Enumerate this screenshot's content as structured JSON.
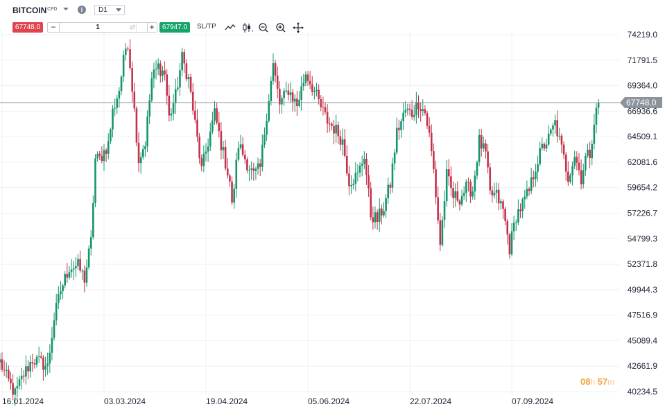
{
  "header": {
    "symbol": "BITCOIN",
    "symbol_tag": "CFD",
    "timeframe": "D1",
    "sell_price": "67748.0",
    "quantity": "1",
    "buy_price": "67947.0",
    "sltp_label": "SL/TP",
    "icons": [
      "chevron-down-icon",
      "info-icon",
      "swap-icon",
      "line-chart-icon",
      "candle-icon",
      "zoom-out-icon",
      "zoom-in-icon",
      "move-icon"
    ]
  },
  "timer": {
    "hours": "08",
    "hours_unit": "h",
    "minutes": "57",
    "minutes_unit": "m"
  },
  "colors": {
    "up": "#13946a",
    "down": "#c53148",
    "current_price_tag": "#8b949e",
    "sell": "#e0434e",
    "buy": "#18a36b",
    "timer": "#f2a33a"
  },
  "chart_data": {
    "type": "candlestick",
    "interval": "D1",
    "x_tick_labels": [
      "16.01.2024",
      "03.03.2024",
      "19.04.2024",
      "05.06.2024",
      "22.07.2024",
      "07.09.2024"
    ],
    "y_tick_labels": [
      "74219.0",
      "71791.5",
      "69364.0",
      "66936.6",
      "64509.1",
      "62081.6",
      "59654.2",
      "57226.7",
      "54799.3",
      "52371.8",
      "49944.3",
      "47516.9",
      "45089.4",
      "42661.9",
      "40234.5"
    ],
    "current_price": 67748.0,
    "current_price_label": "67748.0",
    "ylim": [
      40234.5,
      74219.0
    ],
    "grid": true,
    "series": [
      {
        "date": "2024-01-15",
        "close": 43100
      },
      {
        "date": "2024-01-18",
        "close": 41600
      },
      {
        "date": "2024-01-22",
        "close": 40000
      },
      {
        "date": "2024-01-26",
        "close": 41900
      },
      {
        "date": "2024-01-30",
        "close": 43300
      },
      {
        "date": "2024-02-03",
        "close": 43000
      },
      {
        "date": "2024-02-06",
        "close": 42600
      },
      {
        "date": "2024-02-09",
        "close": 47200
      },
      {
        "date": "2024-02-12",
        "close": 49900
      },
      {
        "date": "2024-02-16",
        "close": 52100
      },
      {
        "date": "2024-02-20",
        "close": 52200
      },
      {
        "date": "2024-02-23",
        "close": 51000
      },
      {
        "date": "2024-02-26",
        "close": 54500
      },
      {
        "date": "2024-02-28",
        "close": 62400
      },
      {
        "date": "2024-03-01",
        "close": 62400
      },
      {
        "date": "2024-03-03",
        "close": 63100
      },
      {
        "date": "2024-03-05",
        "close": 63800
      },
      {
        "date": "2024-03-07",
        "close": 66900
      },
      {
        "date": "2024-03-10",
        "close": 69000
      },
      {
        "date": "2024-03-13",
        "close": 73000
      },
      {
        "date": "2024-03-14",
        "close": 73500
      },
      {
        "date": "2024-03-16",
        "close": 69300
      },
      {
        "date": "2024-03-19",
        "close": 62300
      },
      {
        "date": "2024-03-22",
        "close": 64000
      },
      {
        "date": "2024-03-25",
        "close": 70000
      },
      {
        "date": "2024-03-28",
        "close": 71200
      },
      {
        "date": "2024-03-31",
        "close": 70500
      },
      {
        "date": "2024-04-02",
        "close": 66300
      },
      {
        "date": "2024-04-05",
        "close": 68400
      },
      {
        "date": "2024-04-08",
        "close": 72000
      },
      {
        "date": "2024-04-11",
        "close": 70000
      },
      {
        "date": "2024-04-14",
        "close": 65700
      },
      {
        "date": "2024-04-17",
        "close": 61300
      },
      {
        "date": "2024-04-20",
        "close": 64000
      },
      {
        "date": "2024-04-23",
        "close": 66700
      },
      {
        "date": "2024-04-26",
        "close": 63800
      },
      {
        "date": "2024-04-30",
        "close": 60300
      },
      {
        "date": "2024-05-01",
        "close": 57800
      },
      {
        "date": "2024-05-04",
        "close": 63800
      },
      {
        "date": "2024-05-08",
        "close": 62000
      },
      {
        "date": "2024-05-11",
        "close": 60800
      },
      {
        "date": "2024-05-14",
        "close": 61500
      },
      {
        "date": "2024-05-17",
        "close": 66700
      },
      {
        "date": "2024-05-20",
        "close": 71300
      },
      {
        "date": "2024-05-23",
        "close": 67600
      },
      {
        "date": "2024-05-27",
        "close": 69000
      },
      {
        "date": "2024-05-31",
        "close": 67500
      },
      {
        "date": "2024-06-04",
        "close": 70600
      },
      {
        "date": "2024-06-07",
        "close": 69300
      },
      {
        "date": "2024-06-11",
        "close": 67300
      },
      {
        "date": "2024-06-14",
        "close": 66000
      },
      {
        "date": "2024-06-18",
        "close": 65100
      },
      {
        "date": "2024-06-21",
        "close": 64100
      },
      {
        "date": "2024-06-24",
        "close": 60300
      },
      {
        "date": "2024-06-28",
        "close": 60800
      },
      {
        "date": "2024-07-01",
        "close": 62800
      },
      {
        "date": "2024-07-04",
        "close": 57100
      },
      {
        "date": "2024-07-07",
        "close": 56600
      },
      {
        "date": "2024-07-10",
        "close": 57800
      },
      {
        "date": "2024-07-13",
        "close": 60000
      },
      {
        "date": "2024-07-16",
        "close": 64900
      },
      {
        "date": "2024-07-20",
        "close": 67000
      },
      {
        "date": "2024-07-23",
        "close": 66700
      },
      {
        "date": "2024-07-26",
        "close": 67800
      },
      {
        "date": "2024-07-29",
        "close": 66800
      },
      {
        "date": "2024-07-31",
        "close": 64600
      },
      {
        "date": "2024-08-02",
        "close": 61300
      },
      {
        "date": "2024-08-05",
        "close": 54300
      },
      {
        "date": "2024-08-08",
        "close": 60800
      },
      {
        "date": "2024-08-11",
        "close": 58800
      },
      {
        "date": "2024-08-14",
        "close": 58700
      },
      {
        "date": "2024-08-17",
        "close": 59600
      },
      {
        "date": "2024-08-20",
        "close": 59400
      },
      {
        "date": "2024-08-23",
        "close": 64100
      },
      {
        "date": "2024-08-26",
        "close": 62800
      },
      {
        "date": "2024-08-28",
        "close": 59000
      },
      {
        "date": "2024-08-31",
        "close": 58900
      },
      {
        "date": "2024-09-03",
        "close": 57500
      },
      {
        "date": "2024-09-06",
        "close": 53900
      },
      {
        "date": "2024-09-09",
        "close": 57000
      },
      {
        "date": "2024-09-12",
        "close": 58100
      },
      {
        "date": "2024-09-15",
        "close": 59300
      },
      {
        "date": "2024-09-18",
        "close": 61700
      },
      {
        "date": "2024-09-21",
        "close": 63400
      },
      {
        "date": "2024-09-24",
        "close": 64300
      },
      {
        "date": "2024-09-27",
        "close": 65800
      },
      {
        "date": "2024-09-30",
        "close": 63300
      },
      {
        "date": "2024-10-03",
        "close": 60700
      },
      {
        "date": "2024-10-06",
        "close": 62800
      },
      {
        "date": "2024-10-09",
        "close": 60600
      },
      {
        "date": "2024-10-11",
        "close": 62500
      },
      {
        "date": "2024-10-13",
        "close": 62900
      },
      {
        "date": "2024-10-15",
        "close": 66000
      },
      {
        "date": "2024-10-17",
        "close": 67748
      }
    ]
  }
}
